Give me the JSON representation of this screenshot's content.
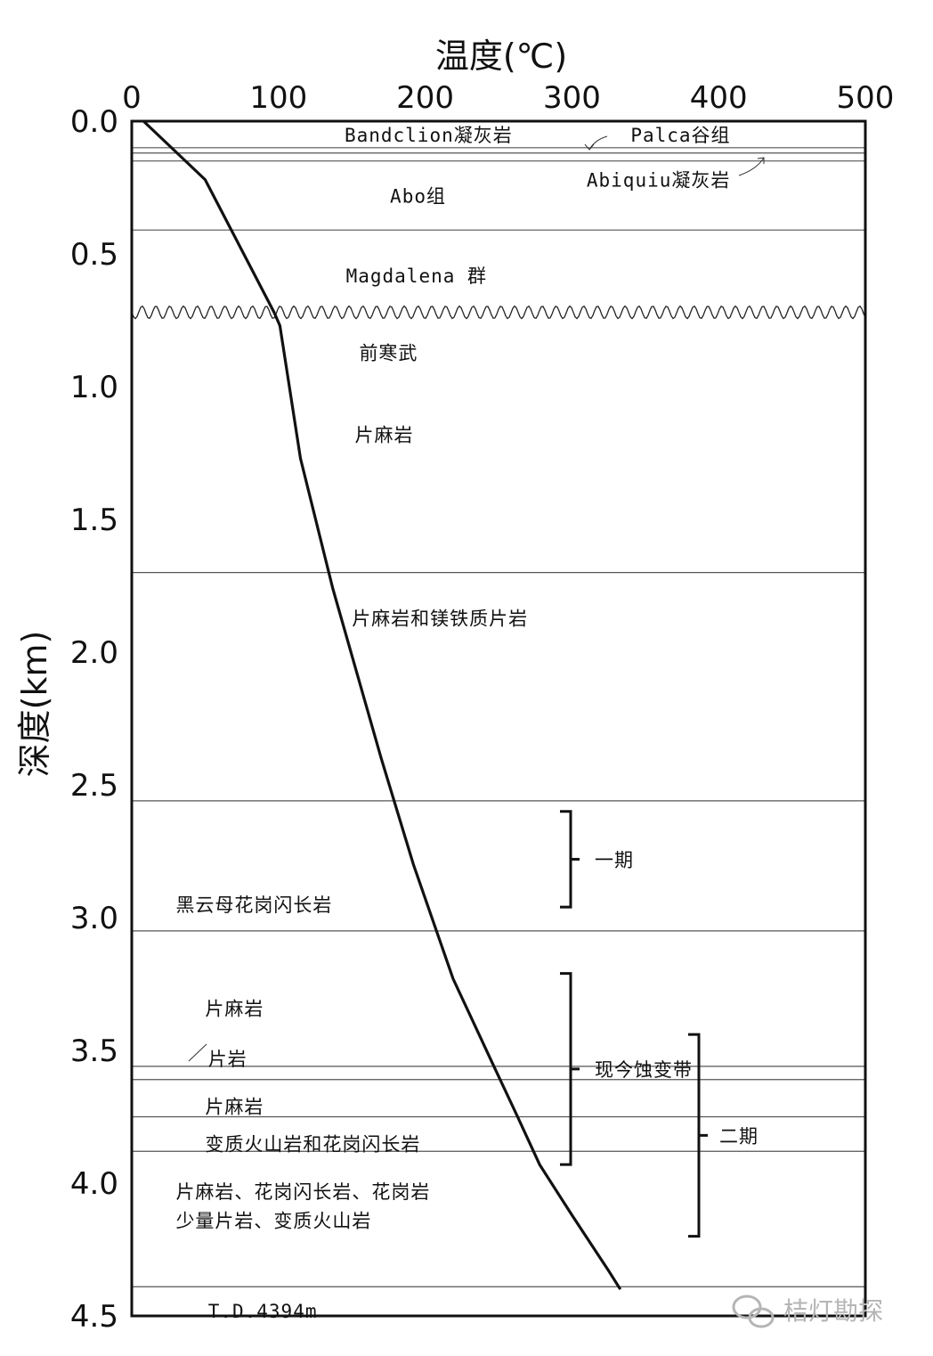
{
  "chart_data": {
    "type": "line",
    "title": "",
    "xlabel": "温度(℃)",
    "ylabel": "深度(km)",
    "xlim": [
      0,
      500
    ],
    "ylim": [
      0.0,
      4.5
    ],
    "x_ticks": [
      "0",
      "100",
      "200",
      "300",
      "400",
      "500"
    ],
    "y_ticks": [
      "0.0",
      "0.5",
      "1.0",
      "1.5",
      "2.0",
      "2.5",
      "3.0",
      "3.5",
      "4.0",
      "4.5"
    ],
    "series": [
      {
        "points": [
          [
            8,
            0.0
          ],
          [
            50,
            0.22
          ],
          [
            97,
            0.72
          ],
          [
            101,
            0.77
          ],
          [
            115,
            1.27
          ],
          [
            137,
            1.76
          ],
          [
            170,
            2.4
          ],
          [
            192,
            2.8
          ],
          [
            219,
            3.23
          ],
          [
            246,
            3.55
          ],
          [
            263,
            3.75
          ],
          [
            278,
            3.93
          ],
          [
            300,
            4.12
          ],
          [
            325,
            4.33
          ],
          [
            333,
            4.4
          ]
        ]
      }
    ],
    "boundaries_km": [
      0.1,
      0.12,
      0.15,
      0.41,
      1.7,
      2.56,
      3.05,
      3.56,
      3.61,
      3.75,
      3.88,
      4.39
    ],
    "unconformity_km": 0.72,
    "layers": [
      {
        "label": "Bandclion凝灰岩",
        "x": 145,
        "y": 0.05
      },
      {
        "label": "Palca谷组",
        "x": 340,
        "y": 0.05
      },
      {
        "label": "Abiquiu凝灰岩",
        "x": 310,
        "y": 0.22
      },
      {
        "label": "Abo组",
        "x": 176,
        "y": 0.28
      },
      {
        "label": "Magdalena 群",
        "x": 146,
        "y": 0.58
      },
      {
        "label": "前寒武",
        "x": 155,
        "y": 0.87
      },
      {
        "label": "片麻岩",
        "x": 152,
        "y": 1.18
      },
      {
        "label": "片麻岩和镁铁质片岩",
        "x": 150,
        "y": 1.87
      },
      {
        "label": "黑云母花岗闪长岩",
        "x": 30,
        "y": 2.95
      },
      {
        "label": "片麻岩",
        "x": 50,
        "y": 3.34
      },
      {
        "label": "片岩",
        "x": 52,
        "y": 3.53
      },
      {
        "label": "片麻岩",
        "x": 50,
        "y": 3.71
      },
      {
        "label": "变质火山岩和花岗闪长岩",
        "x": 50,
        "y": 3.85
      },
      {
        "label": "片麻岩、花岗闪长岩、花岗岩",
        "x": 30,
        "y": 4.03
      },
      {
        "label": "少量片岩、变质火山岩",
        "x": 30,
        "y": 4.14
      },
      {
        "label": "T.D.4394m",
        "x": 52,
        "y": 4.48
      }
    ],
    "annotations": [
      {
        "label": "一期",
        "from": 2.6,
        "to": 2.96
      },
      {
        "label": "现今蚀变带",
        "from": 3.21,
        "to": 3.93
      },
      {
        "label": "二期",
        "from": 3.44,
        "to": 4.2
      }
    ]
  },
  "watermark": {
    "text": "桔灯勘探",
    "icon": "wechat-icon"
  },
  "colors": {
    "line": "#111111",
    "boundary": "#555555",
    "watermark": "#b5b5b5"
  }
}
